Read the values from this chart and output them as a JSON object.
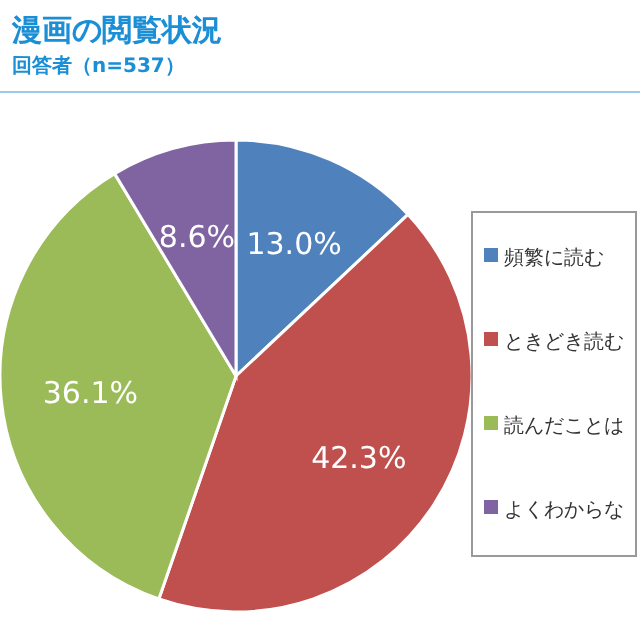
{
  "chart_data": {
    "type": "pie",
    "title": "漫画の閲覧状況",
    "subtitle": "回答者（n=537）",
    "categories": [
      "頻繁に読む",
      "ときどき読む",
      "読んだことは",
      "よくわからな"
    ],
    "values": [
      13.0,
      42.3,
      36.1,
      8.6
    ],
    "colors": [
      "#4f81bd",
      "#c0504d",
      "#9bbb59",
      "#8064a2"
    ],
    "value_labels": [
      "13.0%",
      "42.3%",
      "36.1%",
      "8.6%"
    ],
    "legend": "right"
  }
}
